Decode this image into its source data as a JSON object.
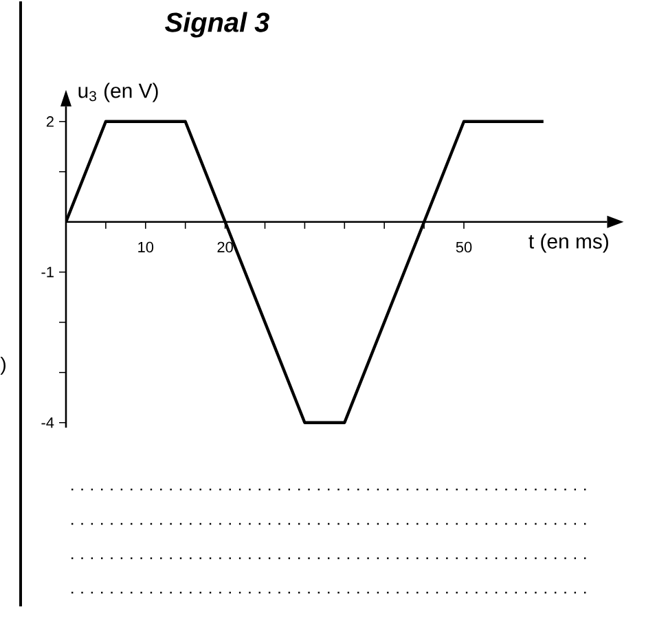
{
  "chart_data": {
    "type": "line",
    "title": "Signal 3",
    "xlabel": "t (en ms)",
    "ylabel": "u$_{3}$ (en V)",
    "x": [
      0,
      5,
      15,
      20,
      30,
      35,
      45,
      50,
      60
    ],
    "series": [
      {
        "color": "#000000",
        "values": [
          0,
          2,
          2,
          0,
          -4,
          -4,
          0,
          2,
          2
        ]
      }
    ],
    "xlim": [
      0,
      68
    ],
    "ylim": [
      -4.1,
      2.3
    ],
    "xticks": [
      {
        "value": 5,
        "label": null
      },
      10,
      {
        "value": 15,
        "label": null
      },
      20,
      {
        "value": 25,
        "label": null
      },
      {
        "value": 30,
        "label": null
      },
      {
        "value": 35,
        "label": null
      },
      {
        "value": 40,
        "label": null
      },
      {
        "value": 45,
        "label": null
      },
      50
    ],
    "yticks": [
      -4,
      {
        "value": -3,
        "label": null
      },
      {
        "value": -2,
        "label": null
      },
      -1,
      {
        "value": 1,
        "label": null
      },
      2
    ],
    "grid": false,
    "marker": "none",
    "line_style": "solid",
    "annotations": [
      ")"
    ]
  }
}
